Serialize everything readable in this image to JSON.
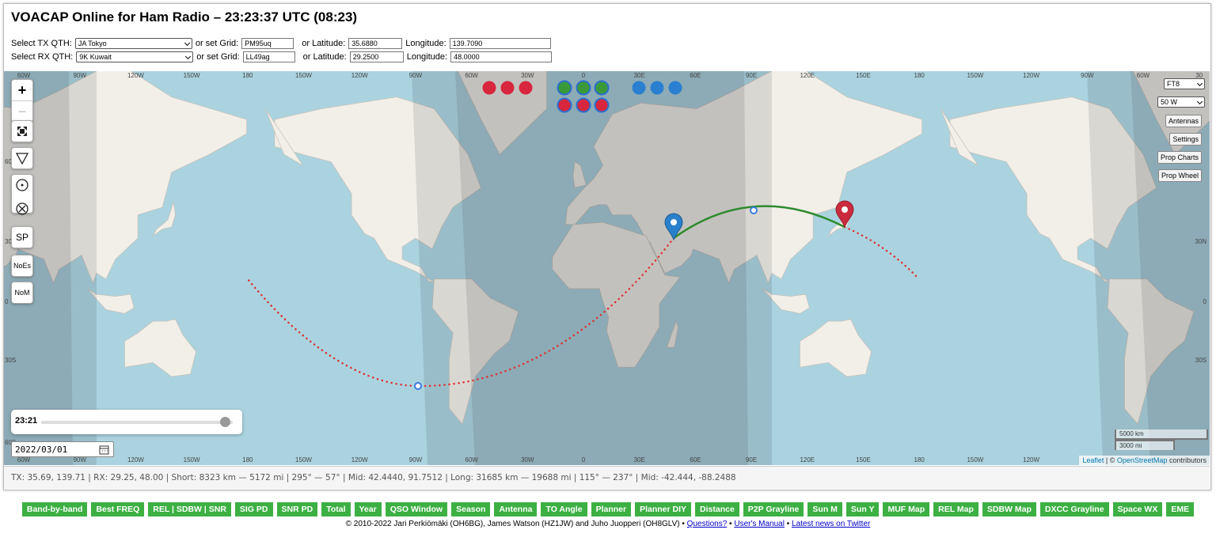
{
  "header": {
    "title": "VOACAP Online for Ham Radio – 23:23:37 UTC (08:23)"
  },
  "qth": {
    "tx": {
      "label": "Select TX QTH:",
      "station": "JA Tokyo",
      "grid_label": "or set Grid:",
      "grid": "PM95uq",
      "lat_label": "or Latitude:",
      "lat": "35.6880",
      "lon_label": "Longitude:",
      "lon": "139.7090"
    },
    "rx": {
      "label": "Select RX QTH:",
      "station": "9K Kuwait",
      "grid_label": "or set Grid:",
      "grid": "LL49ag",
      "lat_label": "or Latitude:",
      "lat": "29.2500",
      "lon_label": "Longitude:",
      "lon": "48.0000"
    }
  },
  "map": {
    "zoom_in": "+",
    "zoom_out": "−",
    "sp": "SP",
    "noes": "NoEs",
    "nom": "NoM",
    "mode": "FT8",
    "power": "50 W",
    "buttons": [
      "Antennas",
      "Settings",
      "Prop Charts",
      "Prop Wheel"
    ],
    "time": "23:21",
    "date": "2022/03/01",
    "scale": [
      "5000 km",
      "3000 mi"
    ],
    "attribution": {
      "leaflet": "Leaflet",
      "sep": "| ©",
      "osm": "OpenStreetMap",
      "suffix": "contributors"
    },
    "top_labels": [
      "60W",
      "90W",
      "120W",
      "150W",
      "180",
      "150W",
      "120W",
      "90W",
      "60W",
      "30W",
      "0",
      "30E",
      "60E",
      "90E",
      "120E",
      "150E",
      "180",
      "150W",
      "120W",
      "90W",
      "60W",
      "30"
    ],
    "bottom_labels": [
      "60W",
      "90W",
      "120W",
      "150W",
      "180",
      "150W",
      "120W",
      "90W",
      "60W",
      "30W",
      "0",
      "30E",
      "60E",
      "90E",
      "120E",
      "150E",
      "180",
      "150W",
      "120W"
    ],
    "left_labels": [
      "60",
      "30",
      "0",
      "30S",
      "60S"
    ],
    "right_labels": [
      "30N",
      "0",
      "30S"
    ]
  },
  "status": "TX: 35.69, 139.71 | RX: 29.25, 48.00 | Short: 8323 km — 5172 mi |  295° — 57° | Mid: 42.4440, 91.7512 | Long: 31685 km — 19688 mi |  115° — 237° | Mid: -42.444, -88.2488",
  "tools": [
    "Band-by-band",
    "Best FREQ",
    "REL | SDBW | SNR",
    "SIG PD",
    "SNR PD",
    "Total",
    "Year",
    "QSO Window",
    "Season",
    "Antenna",
    "TO Angle",
    "Planner",
    "Planner DIY",
    "Distance",
    "P2P Grayline",
    "Sun M",
    "Sun Y",
    "MUF Map",
    "REL Map",
    "SDBW Map",
    "DXCC Grayline",
    "Space WX",
    "EME"
  ],
  "footer": {
    "credits": "© 2010-2022 Jari Perkiömäki (OH6BG), James Watson (HZ1JW) and Juho Juopperi (OH8GLV) •",
    "links": [
      "Questions?",
      "User's Manual",
      "Latest news on Twitter"
    ],
    "separator": "•"
  }
}
